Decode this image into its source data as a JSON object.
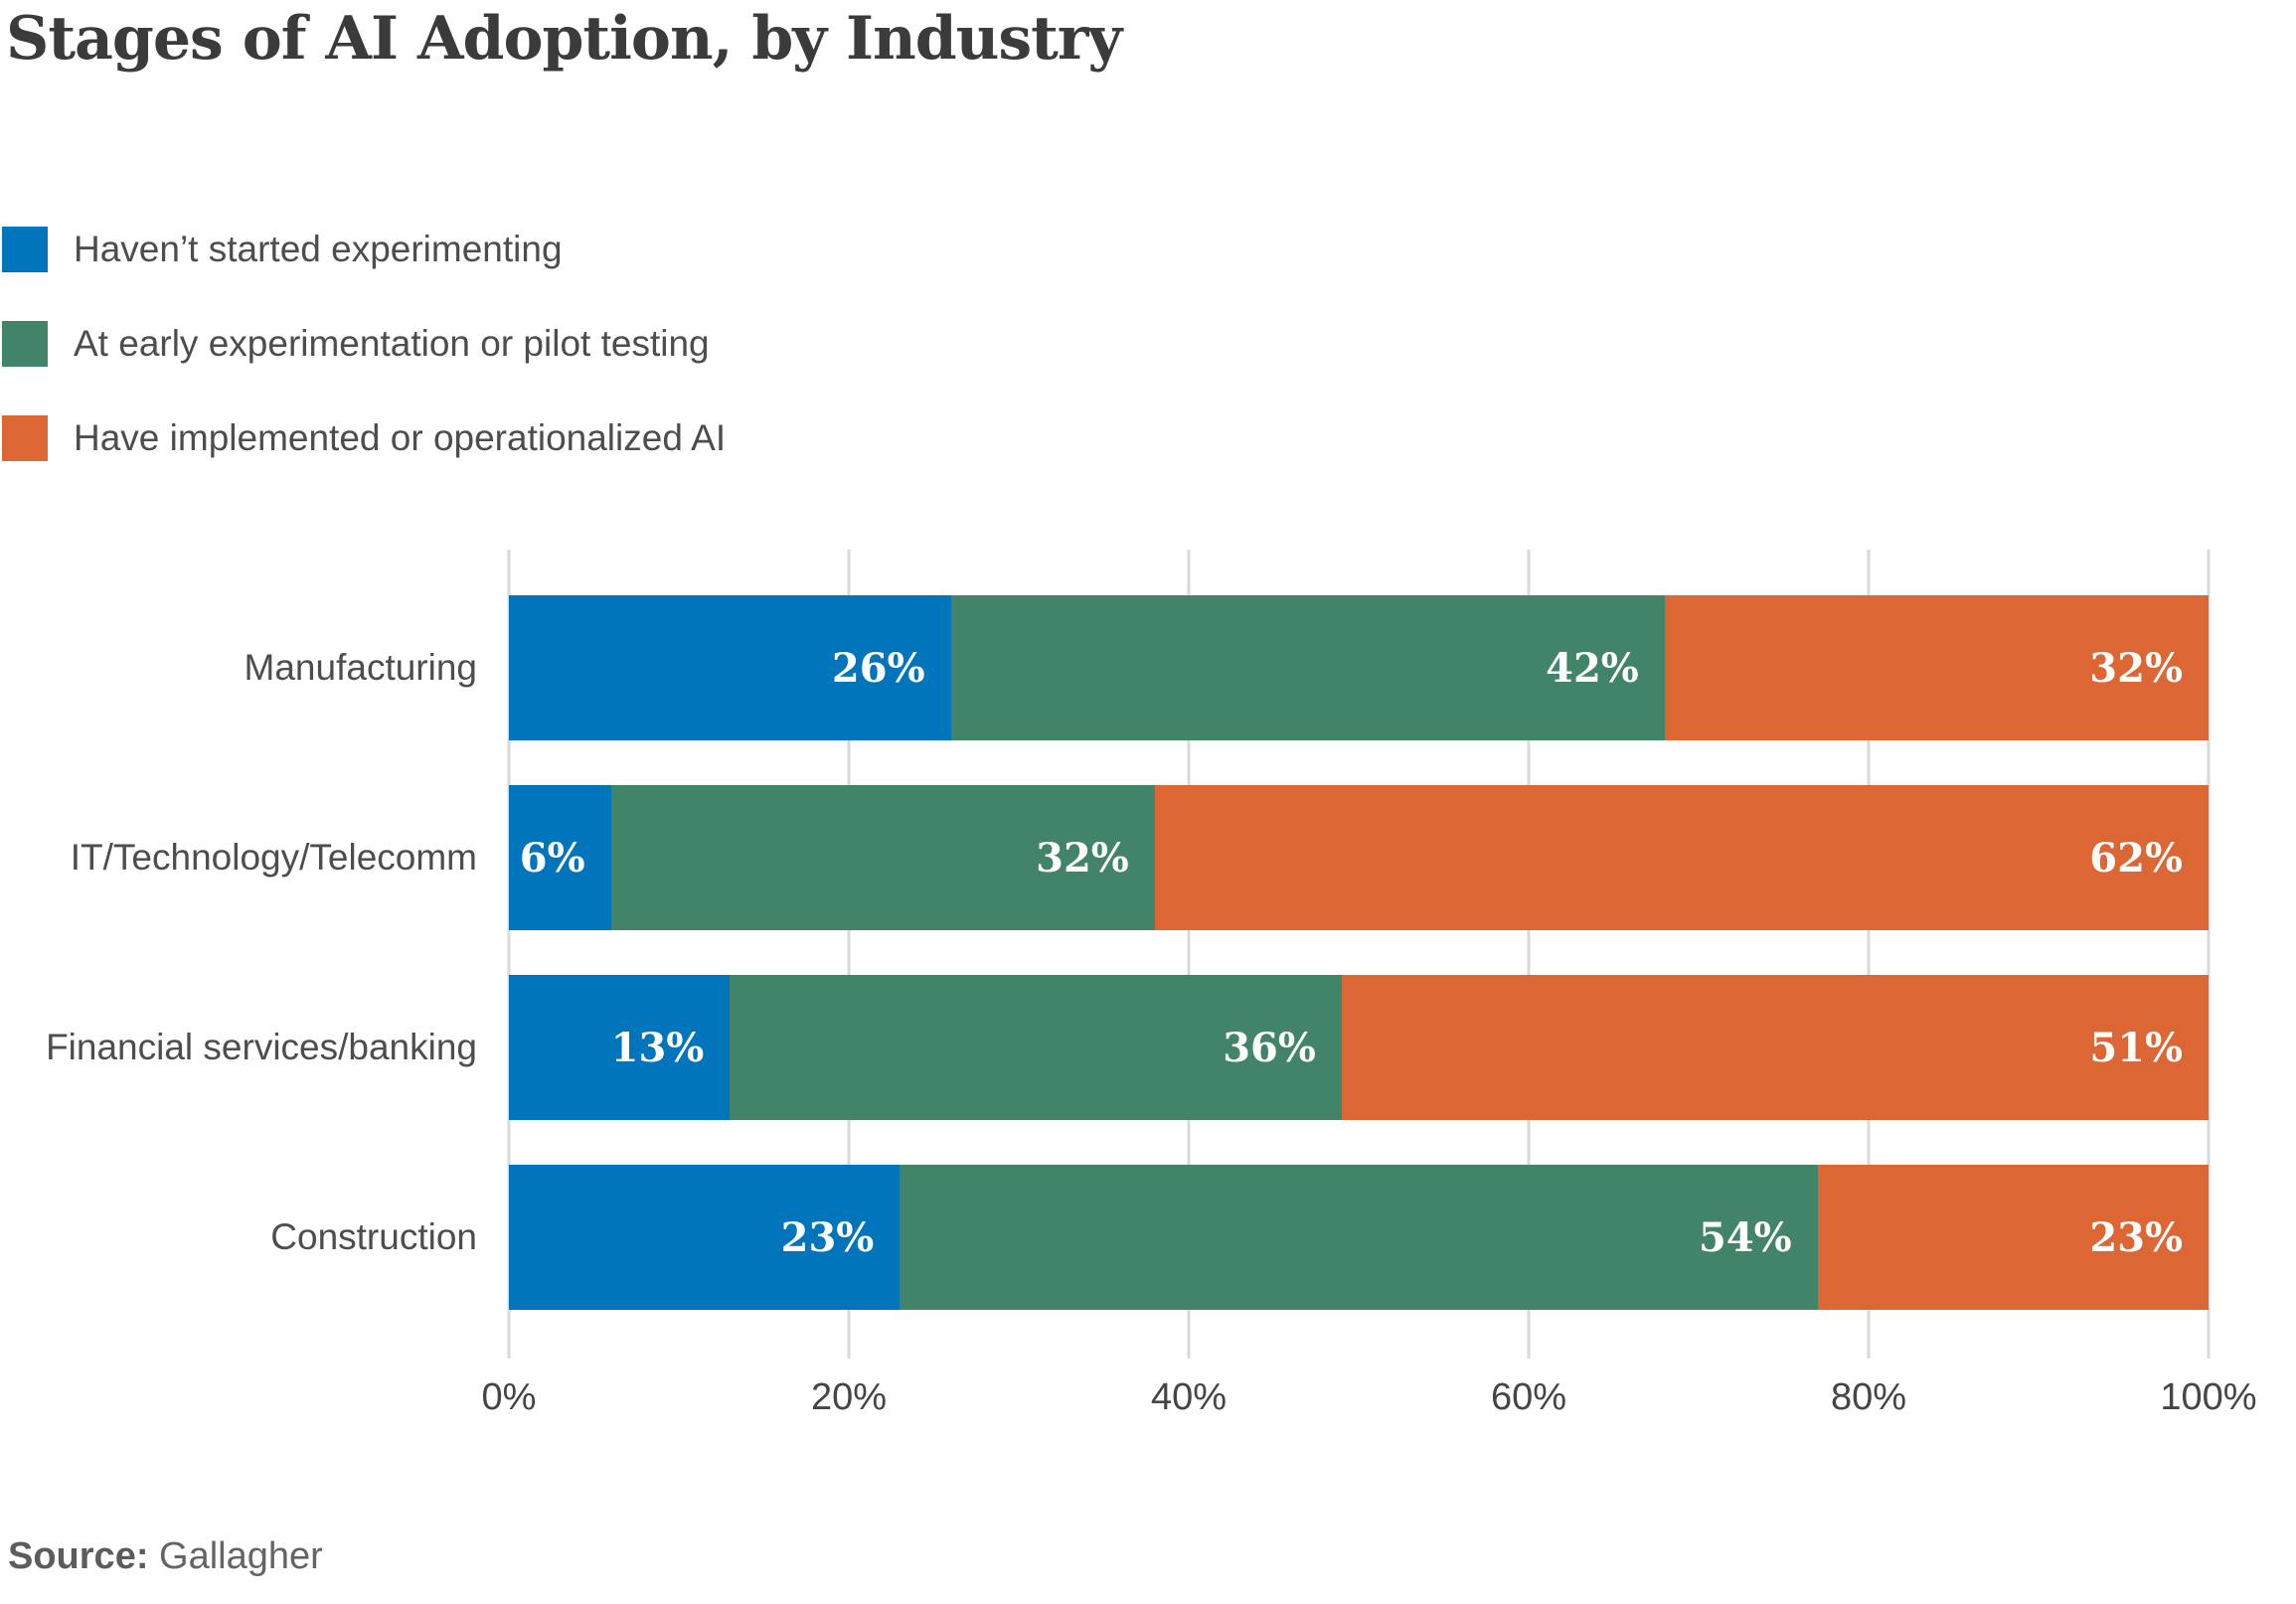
{
  "title": "Stages of AI Adoption, by Industry",
  "source": {
    "label": "Source:",
    "value": "Gallagher"
  },
  "colors": {
    "blue": "#0075BC",
    "green": "#418467",
    "orange": "#DD6734",
    "gridline": "#D9D9D9",
    "title_text": "#3B3B3B",
    "body_text": "#4D4D4D",
    "bar_label_text": "#FFFFFF",
    "source_text": "#646464"
  },
  "chart_data": {
    "type": "bar",
    "stacked": true,
    "orientation": "horizontal",
    "title": "Stages of AI Adoption, by Industry",
    "categories": [
      "Manufacturing",
      "IT/Technology/Telecomm",
      "Financial services/banking",
      "Construction"
    ],
    "series": [
      {
        "name": "Haven’t started experimenting",
        "color": "#0075BC",
        "values": [
          26,
          6,
          13,
          23
        ]
      },
      {
        "name": "At early experimentation or pilot testing",
        "color": "#418467",
        "values": [
          42,
          32,
          36,
          54
        ]
      },
      {
        "name": "Have implemented or operationalized AI",
        "color": "#DD6734",
        "values": [
          32,
          62,
          51,
          23
        ]
      }
    ],
    "value_suffix": "%",
    "x_ticks": [
      "0%",
      "20%",
      "40%",
      "60%",
      "80%",
      "100%"
    ],
    "xlim": [
      0,
      100
    ],
    "grid": true,
    "legend_position": "top-left",
    "bar_label_position": "inside-right"
  }
}
